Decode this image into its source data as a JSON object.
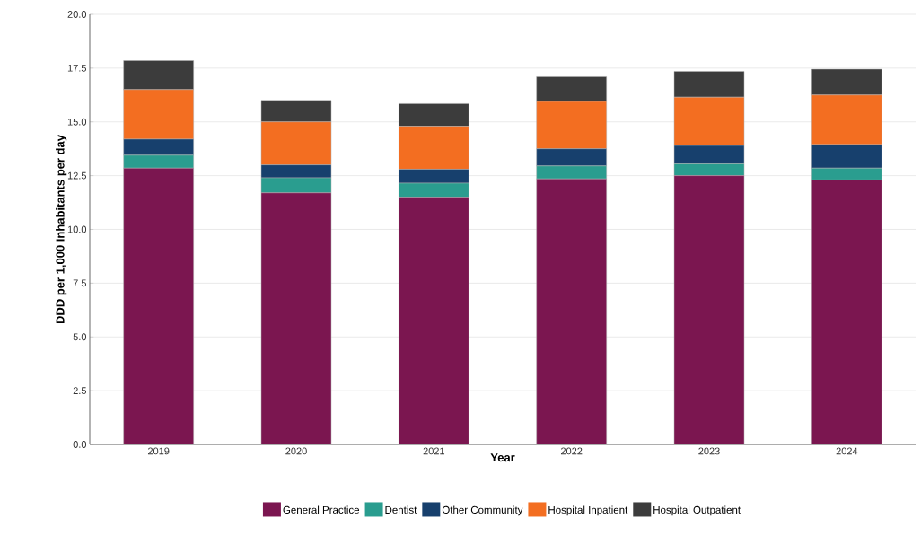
{
  "chart_data": {
    "type": "bar",
    "stacked": true,
    "xlabel": "Year",
    "ylabel": "DDD per 1,000 Inhabitants per day",
    "categories": [
      "2019",
      "2020",
      "2021",
      "2022",
      "2023",
      "2024"
    ],
    "series": [
      {
        "name": "General Practice",
        "color": "#7b1650",
        "values": [
          12.85,
          11.7,
          11.5,
          12.35,
          12.5,
          12.3
        ]
      },
      {
        "name": "Dentist",
        "color": "#2a9d8f",
        "values": [
          0.6,
          0.7,
          0.65,
          0.6,
          0.55,
          0.55
        ]
      },
      {
        "name": "Other Community",
        "color": "#17406d",
        "values": [
          0.75,
          0.6,
          0.65,
          0.8,
          0.85,
          1.1
        ]
      },
      {
        "name": "Hospital Inpatient",
        "color": "#f36e21",
        "values": [
          2.3,
          2.0,
          2.0,
          2.2,
          2.25,
          2.3
        ]
      },
      {
        "name": "Hospital Outpatient",
        "color": "#3c3c3c",
        "values": [
          1.35,
          1.0,
          1.05,
          1.15,
          1.2,
          1.2
        ]
      }
    ],
    "ylim": [
      0,
      20
    ],
    "yticks": [
      {
        "value": 0,
        "label": "0.0"
      },
      {
        "value": 2.5,
        "label": "2.5"
      },
      {
        "value": 5,
        "label": "5.0"
      },
      {
        "value": 7.5,
        "label": "7.5"
      },
      {
        "value": 10,
        "label": "10.0"
      },
      {
        "value": 12.5,
        "label": "12.5"
      },
      {
        "value": 15,
        "label": "15.0"
      },
      {
        "value": 17.5,
        "label": "17.5"
      },
      {
        "value": 20,
        "label": "20.0"
      }
    ],
    "grid": "y",
    "legend": "bottom"
  }
}
